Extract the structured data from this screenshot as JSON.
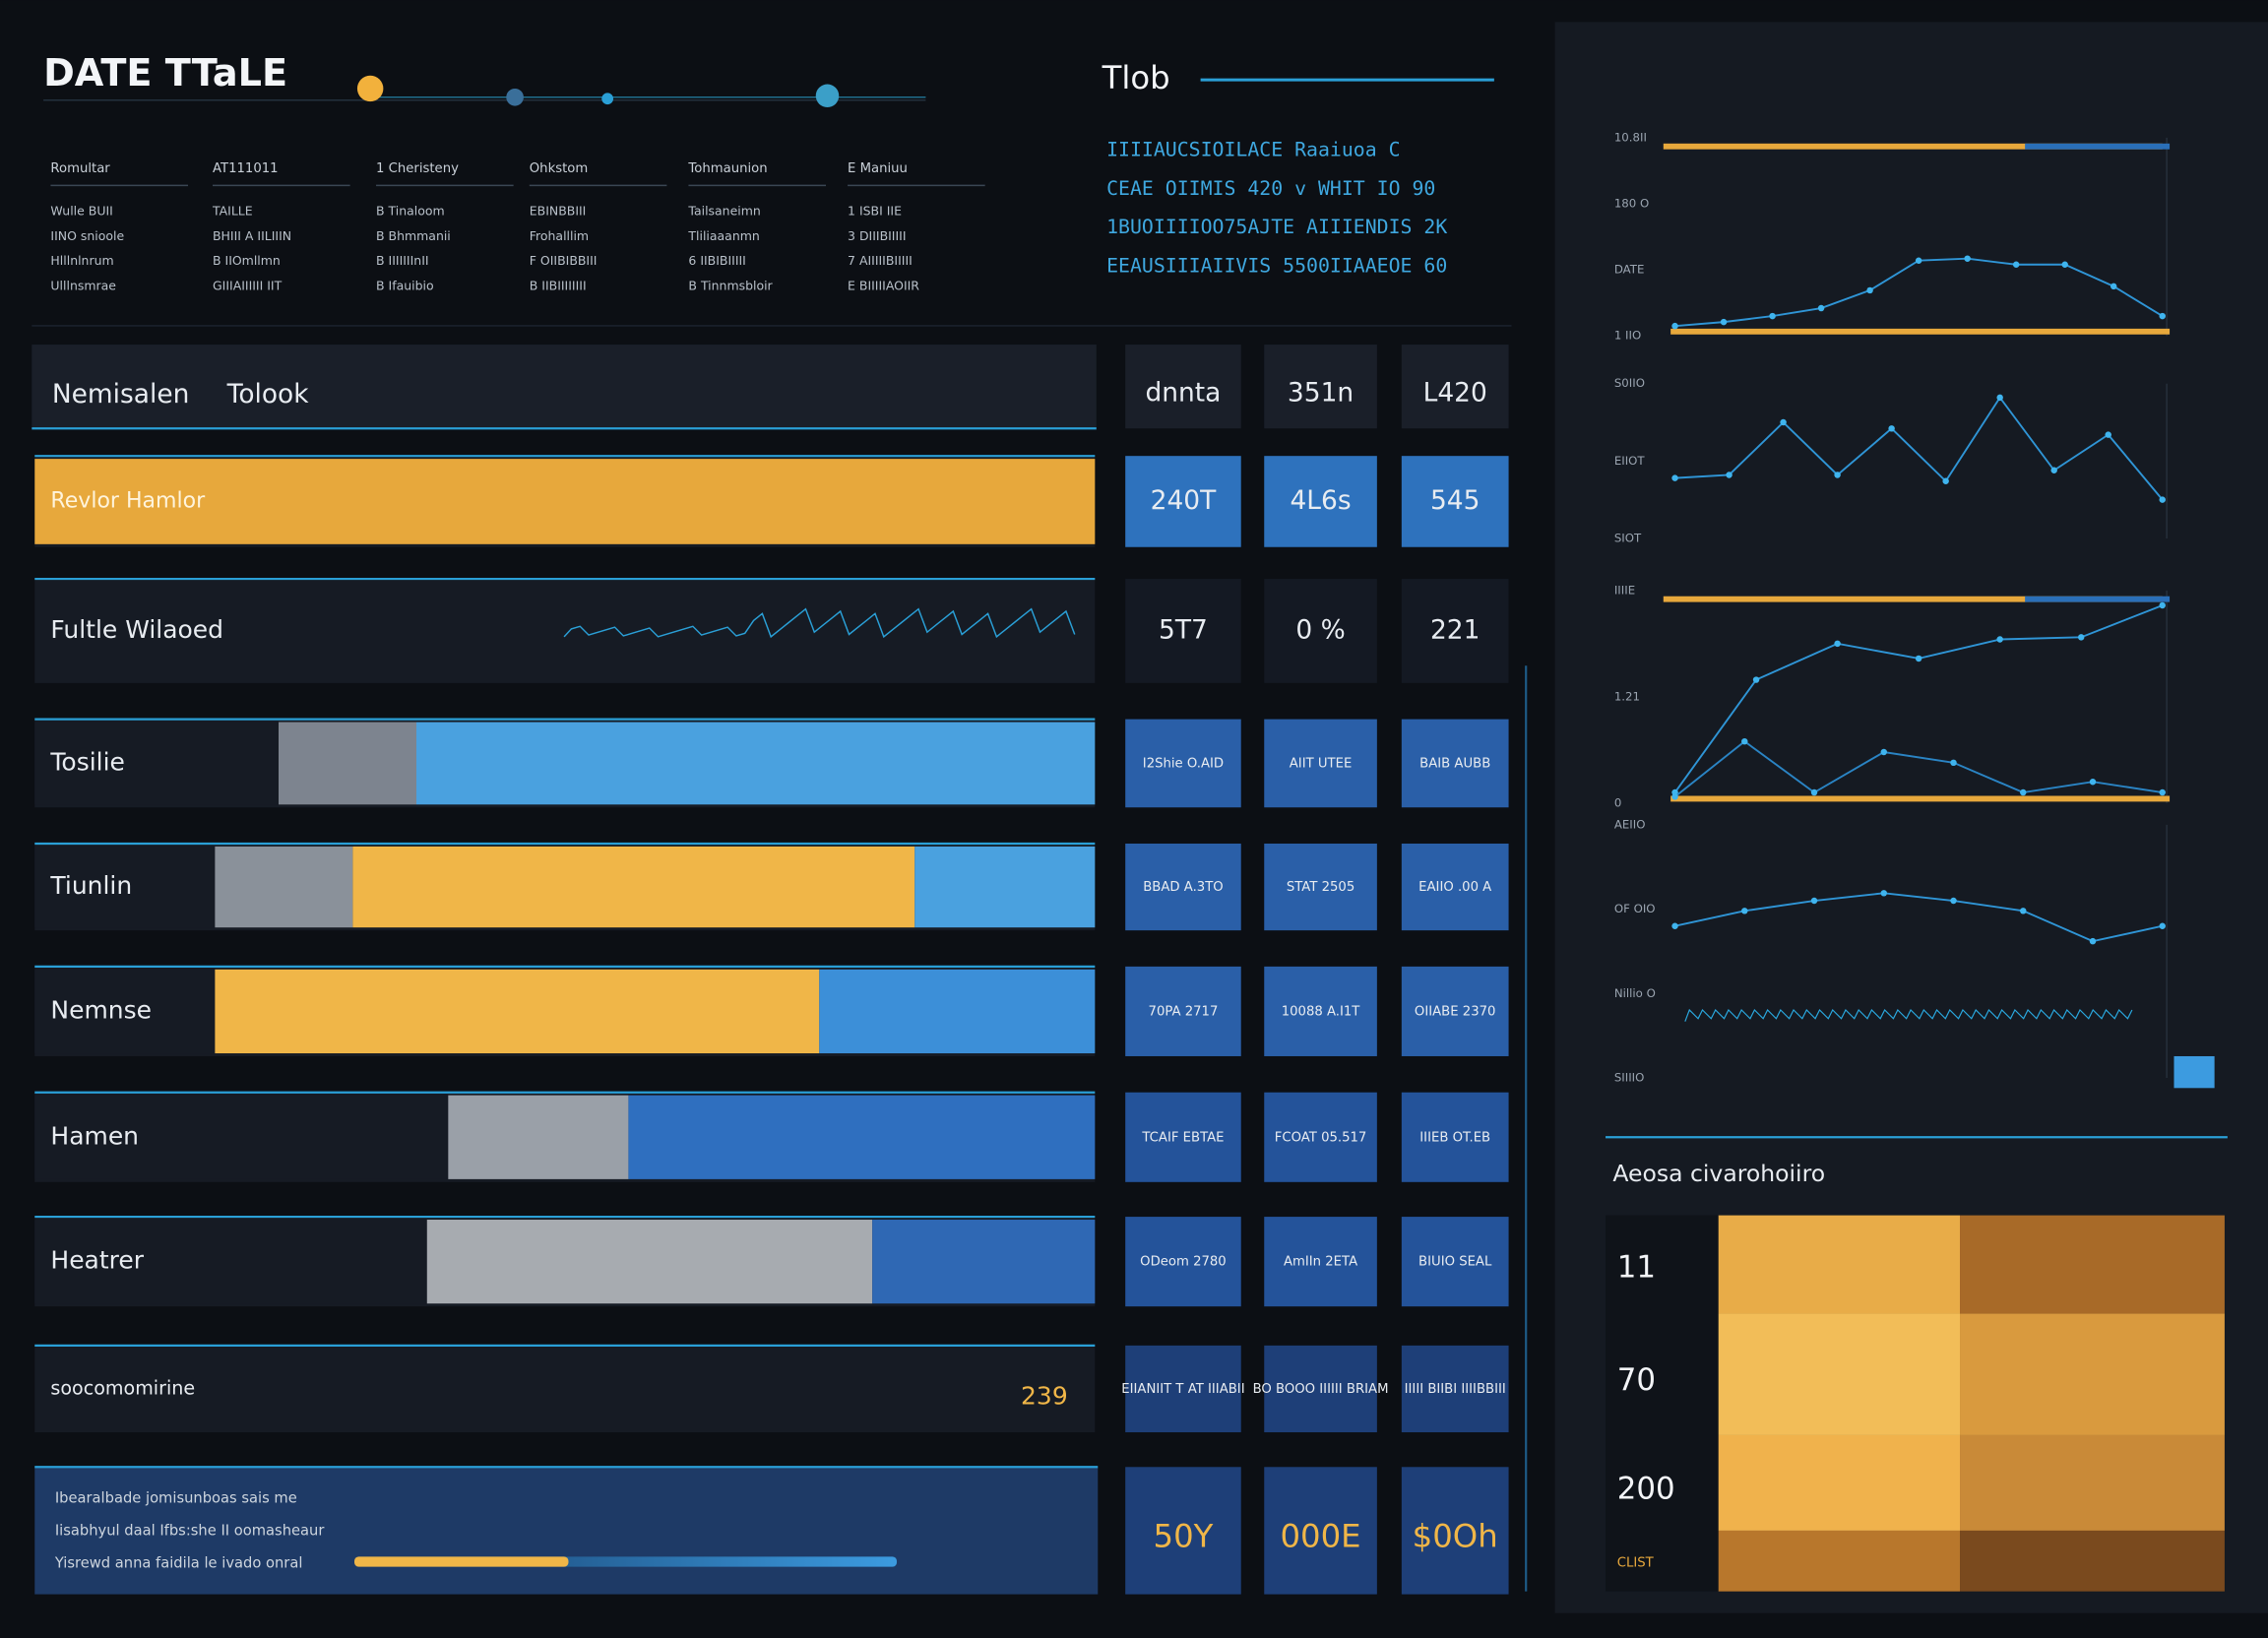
{
  "header": {
    "title": "DATE TTaLE",
    "subtitle": "Tlob"
  },
  "info": {
    "columns": [
      "Romultar",
      "AT111011",
      "1 Cheristeny",
      "Ohkstom",
      "Tohmaunion",
      "E Maniuu"
    ],
    "rows": [
      [
        "Wulle BUII",
        "TAILLE",
        "B Tinaloom",
        "EBINBBIII",
        "Tailsaneimn",
        "1 ISBI IIE"
      ],
      [
        "IINO snioole",
        "BHIII A IILIIIN",
        "B Bhmmanii",
        "Frohalllim",
        "Tliliaaanmn",
        "3 DIIIBIIIII"
      ],
      [
        "Hlllnlnrum",
        "B IIOmllmn",
        "B IIIIIIInII",
        "F OIIBIBBIII",
        "6 IIBIBIIIII",
        "7 AIIIIIBIIIII"
      ],
      [
        "Ulllnsmrae",
        "GIIIAIIIIII IIT",
        "B Ifauibio",
        "B IIBIIIIIIII",
        "B Tinnmsbloir",
        "E BIIIIIAOIIR"
      ]
    ]
  },
  "code_lines": [
    "IIIIAUCSIOILACE Raaiuoa C",
    "CEAE OIIMIS 420 v WHIT IO 90",
    "1BUOIIIIOO75AJTE AIIIENDIS 2K",
    "EEAUSIIIAIIVIS 5500IIAAEOE 60"
  ],
  "table": {
    "header": [
      "Nemisalen",
      "Tolook"
    ],
    "header_cells": [
      "dnnta",
      "351n",
      "L420"
    ],
    "rows": [
      {
        "name": "Revlor Hamlor",
        "cell_color": "#2e72bd",
        "segments": [
          {
            "value": 100,
            "color": "#e7a83c"
          }
        ],
        "cells": [
          "240T",
          "4L6s",
          "545"
        ]
      },
      {
        "name": "Fultle Wilaoed",
        "cell_color": "#141923",
        "segments": [],
        "cells": [
          "5T7",
          "0 %",
          "221"
        ]
      },
      {
        "name": "Tosilie",
        "cell_color": "#2a5fa8",
        "segments": [
          {
            "value": 23,
            "color": "#161b24"
          },
          {
            "value": 13,
            "color": "#7d848f"
          },
          {
            "value": 64,
            "color": "#4aa1df"
          }
        ],
        "cells": [
          "I2Shie O.AID",
          "AIIT UTEE",
          "BAIB AUBB"
        ]
      },
      {
        "name": "Tiunlin",
        "cell_color": "#2a5fa8",
        "segments": [
          {
            "value": 17,
            "color": "#161b24"
          },
          {
            "value": 13,
            "color": "#8a919a"
          },
          {
            "value": 53,
            "color": "#f0b648"
          },
          {
            "value": 17,
            "color": "#4aa1df"
          }
        ],
        "cells": [
          "BBAD A.3TO",
          "STAT 2505",
          "EAIIO .00 A"
        ]
      },
      {
        "name": "Nemnse",
        "cell_color": "#2a5fa8",
        "segments": [
          {
            "value": 17,
            "color": "#161b24"
          },
          {
            "value": 57,
            "color": "#f0b648"
          },
          {
            "value": 26,
            "color": "#3c8fd8"
          }
        ],
        "cells": [
          "70PA 2717",
          "10088 A.I1T",
          "OIIABE 2370"
        ]
      },
      {
        "name": "Hamen",
        "cell_color": "#24539a",
        "segments": [
          {
            "value": 39,
            "color": "#161b24"
          },
          {
            "value": 17,
            "color": "#9aa0a8"
          },
          {
            "value": 44,
            "color": "#2f6fbf"
          }
        ],
        "cells": [
          "TCAIF EBTAE",
          "FCOAT 05.517",
          "IIIEB OT.EB"
        ]
      },
      {
        "name": "Heatrer",
        "cell_color": "#24539a",
        "segments": [
          {
            "value": 37,
            "color": "#161b24"
          },
          {
            "value": 42,
            "color": "#a7abb0"
          },
          {
            "value": 21,
            "color": "#2f68b4"
          }
        ],
        "cells": [
          "ODeom 2780",
          "AmIIn 2ETA",
          "BIUIO SEAL"
        ]
      },
      {
        "name": "soocomomirine",
        "cell_color": "#1e3f78",
        "segments": [],
        "cells": [
          "EIIANIIT T AT IIIABII",
          "BO BOOO IIIIII BRIAM",
          "IIIII BIIBI IIIIBBIII"
        ],
        "note": "239"
      }
    ]
  },
  "footer": {
    "lines": [
      "Ibearalbade jomisunboas sais me",
      "Iisabhyul daal Ifbs:she II oomasheaur",
      "Yisrewd anna faidila le ivado onral"
    ],
    "cells": [
      "50Y",
      "000E",
      "$0Oh"
    ]
  },
  "charts": [
    {
      "type": "line",
      "ylim": [
        0,
        100
      ],
      "labels": [
        "10.8II",
        "180 O",
        "DATE",
        "1 IIO"
      ],
      "series": [
        {
          "color": "#2f95d6",
          "values": [
            5,
            7,
            10,
            14,
            23,
            38,
            39,
            36,
            36,
            25,
            10
          ]
        }
      ]
    },
    {
      "type": "line",
      "ylim": [
        0,
        100
      ],
      "labels": [
        "S0IIO",
        "EIIOT",
        "SIOT"
      ],
      "series": [
        {
          "color": "#2f95d6",
          "values": [
            39,
            41,
            75,
            41,
            71,
            37,
            91,
            44,
            67,
            25
          ]
        }
      ]
    },
    {
      "type": "line",
      "ylim": [
        0,
        100
      ],
      "labels": [
        "IIIIE",
        "1.21",
        "0"
      ],
      "series": [
        {
          "color": "#2f95d6",
          "values": [
            5,
            58,
            75,
            68,
            77,
            78,
            93
          ]
        },
        {
          "color": "#2a84c4",
          "values": [
            3,
            29,
            5,
            24,
            19,
            5,
            10,
            5
          ]
        }
      ]
    },
    {
      "type": "line",
      "ylim": [
        0,
        100
      ],
      "labels": [
        "AEIIO",
        "OF OIO",
        "Nillio O",
        "SIIIIO"
      ],
      "series": [
        {
          "color": "#2f95d6",
          "values": [
            60,
            66,
            70,
            73,
            70,
            66,
            54,
            60
          ]
        }
      ]
    }
  ],
  "summary": {
    "title": "Aeosa civarohoiiro",
    "labels": [
      "11",
      "70",
      "200",
      "CLIST"
    ]
  }
}
